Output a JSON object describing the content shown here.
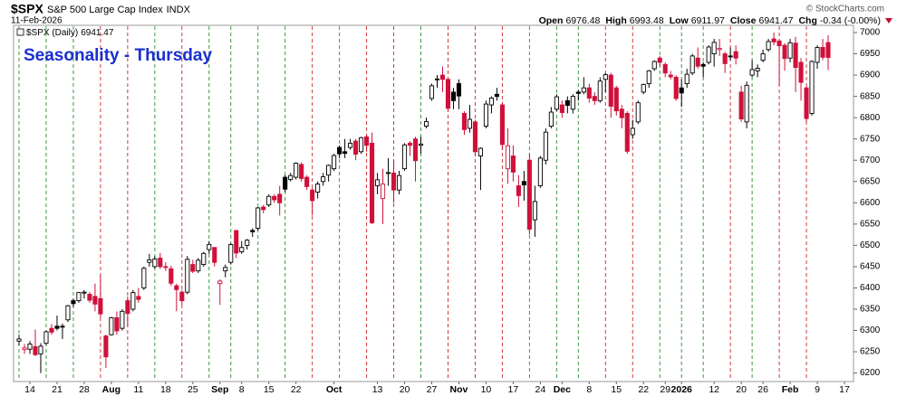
{
  "header": {
    "symbol": "$SPX",
    "name": "S&P 500 Large Cap Index",
    "exchange": "INDX",
    "date": "11-Feb-2026",
    "labels": {
      "open": "Open",
      "high": "High",
      "low": "Low",
      "close": "Close",
      "change": "Chg"
    },
    "change": "-0.34 (-0.00%)",
    "source": "© StockCharts.com"
  },
  "chart_data": {
    "type": "candlestick",
    "title": "Seasonality - Thursday",
    "legend_label": "$SPX (Daily)",
    "categories": [
      null,
      null,
      "14",
      null,
      null,
      null,
      null,
      "21",
      null,
      null,
      null,
      null,
      "28",
      null,
      null,
      null,
      null,
      "Aug",
      null,
      null,
      null,
      null,
      "11",
      null,
      null,
      null,
      null,
      "18",
      null,
      null,
      null,
      null,
      "25",
      null,
      null,
      null,
      null,
      "Sep",
      null,
      null,
      null,
      "8",
      null,
      null,
      null,
      null,
      "15",
      null,
      null,
      null,
      null,
      "22",
      null,
      null,
      null,
      null,
      null,
      null,
      "Oct",
      null,
      null,
      null,
      null,
      null,
      null,
      null,
      "13",
      null,
      null,
      null,
      null,
      "20",
      null,
      null,
      null,
      null,
      "27",
      null,
      null,
      null,
      null,
      "Nov",
      null,
      null,
      null,
      null,
      "10",
      null,
      null,
      null,
      null,
      "17",
      null,
      null,
      null,
      null,
      "24",
      null,
      null,
      null,
      "Dec",
      null,
      null,
      null,
      null,
      "8",
      null,
      null,
      null,
      null,
      "15",
      null,
      null,
      null,
      null,
      "22",
      null,
      null,
      null,
      "29",
      null,
      null,
      "2026",
      null,
      null,
      null,
      null,
      null,
      "12",
      null,
      null,
      null,
      null,
      "20",
      null,
      null,
      null,
      "26",
      null,
      null,
      null,
      null,
      "Feb",
      null,
      null,
      null,
      null,
      "9",
      null,
      null,
      null,
      null,
      "17"
    ],
    "open": [
      6275,
      6255,
      6256,
      6262,
      6245,
      6270,
      6305,
      6310,
      6310,
      6325,
      6370,
      6370,
      6390,
      6385,
      6380,
      6375,
      6287,
      6290,
      6330,
      6305,
      6370,
      6350,
      6380,
      6400,
      6460,
      6450,
      6470,
      6450,
      6445,
      6405,
      6390,
      6390,
      6455,
      6440,
      6455,
      6490,
      6495,
      6410,
      6440,
      6460,
      6535,
      6485,
      6500,
      6535,
      6540,
      6590,
      6595,
      6615,
      6620,
      6660,
      6655,
      6660,
      6690,
      6660,
      6630,
      6625,
      6650,
      6665,
      6680,
      6730,
      6720,
      6730,
      6745,
      6720,
      6755,
      6740,
      6640,
      6610,
      6670,
      6670,
      6630,
      6680,
      6740,
      6750,
      6735,
      6780,
      6845,
      6890,
      6900,
      6890,
      6860,
      6880,
      6810,
      6775,
      6790,
      6710,
      6780,
      6830,
      6855,
      6830,
      6680,
      6710,
      6640,
      6650,
      6700,
      6560,
      6640,
      6700,
      6780,
      6820,
      6830,
      6840,
      6820,
      6860,
      6860,
      6870,
      6850,
      6840,
      6890,
      6900,
      6870,
      6820,
      6810,
      6760,
      6790,
      6860,
      6880,
      6915,
      6940,
      6925,
      6900,
      6895,
      6870,
      6880,
      6905,
      6940,
      6925,
      6930,
      6950,
      6960,
      6950,
      6945,
      6955,
      6860,
      6790,
      6900,
      6910,
      6935,
      6960,
      6985,
      6980,
      6970,
      6940,
      6975,
      6930,
      6870,
      6810,
      6930,
      6965,
      6976.48,
      null,
      null,
      null
    ],
    "high": [
      6290,
      6268,
      6275,
      6302,
      6270,
      6300,
      6315,
      6335,
      6316,
      6360,
      6375,
      6390,
      6395,
      6390,
      6410,
      6430,
      6290,
      6332,
      6345,
      6350,
      6380,
      6395,
      6400,
      6450,
      6480,
      6475,
      6482,
      6460,
      6452,
      6410,
      6395,
      6475,
      6466,
      6470,
      6485,
      6510,
      6495,
      6420,
      6455,
      6505,
      6535,
      6510,
      6515,
      6540,
      6590,
      6595,
      6620,
      6620,
      6640,
      6665,
      6670,
      6695,
      6695,
      6665,
      6635,
      6650,
      6670,
      6690,
      6715,
      6735,
      6750,
      6750,
      6750,
      6755,
      6760,
      6765,
      6670,
      6680,
      6705,
      6700,
      6675,
      6740,
      6745,
      6755,
      6755,
      6800,
      6880,
      6900,
      6920,
      6890,
      6870,
      6890,
      6815,
      6830,
      6795,
      6730,
      6840,
      6850,
      6870,
      6835,
      6775,
      6735,
      6665,
      6675,
      6715,
      6640,
      6710,
      6775,
      6825,
      6855,
      6840,
      6850,
      6855,
      6865,
      6895,
      6880,
      6860,
      6895,
      6905,
      6905,
      6875,
      6830,
      6815,
      6795,
      6840,
      6880,
      6912,
      6935,
      6945,
      6930,
      6910,
      6900,
      6890,
      6915,
      6950,
      6965,
      6930,
      6970,
      6985,
      6985,
      6955,
      6965,
      6970,
      6875,
      6885,
      6935,
      6925,
      6960,
      6985,
      7000,
      6985,
      6975,
      6985,
      6990,
      6940,
      6875,
      6935,
      6970,
      6985,
      6993.48,
      null,
      null,
      null
    ],
    "low": [
      6265,
      6245,
      6245,
      6240,
      6200,
      6265,
      6290,
      6300,
      6280,
      6320,
      6355,
      6365,
      6375,
      6365,
      6345,
      6330,
      6212,
      6288,
      6290,
      6300,
      6310,
      6345,
      6365,
      6395,
      6450,
      6445,
      6445,
      6440,
      6405,
      6345,
      6360,
      6385,
      6435,
      6435,
      6450,
      6480,
      6450,
      6360,
      6425,
      6455,
      6470,
      6480,
      6490,
      6520,
      6535,
      6575,
      6590,
      6600,
      6570,
      6625,
      6650,
      6655,
      6650,
      6630,
      6570,
      6610,
      6640,
      6650,
      6675,
      6705,
      6705,
      6725,
      6700,
      6715,
      6720,
      6550,
      6620,
      6550,
      6640,
      6600,
      6620,
      6675,
      6710,
      6650,
      6715,
      6775,
      6840,
      6870,
      6860,
      6815,
      6820,
      6820,
      6760,
      6765,
      6710,
      6630,
      6775,
      6810,
      6840,
      6725,
      6645,
      6650,
      6590,
      6605,
      6525,
      6520,
      6635,
      6690,
      6775,
      6815,
      6800,
      6810,
      6810,
      6840,
      6855,
      6835,
      6830,
      6835,
      6860,
      6800,
      6805,
      6775,
      6715,
      6750,
      6785,
      6855,
      6870,
      6910,
      6920,
      6895,
      6890,
      6840,
      6825,
      6870,
      6900,
      6915,
      6895,
      6925,
      6920,
      6945,
      6905,
      6935,
      6925,
      6790,
      6775,
      6895,
      6895,
      6930,
      6955,
      6970,
      6875,
      6910,
      6930,
      6860,
      6840,
      6790,
      6805,
      6915,
      6935,
      6911.97,
      null,
      null,
      null
    ],
    "close": [
      6280,
      6259,
      6268,
      6243,
      6263,
      6297,
      6296,
      6305,
      6309,
      6358,
      6363,
      6389,
      6390,
      6371,
      6362,
      6339,
      6238,
      6330,
      6299,
      6345,
      6340,
      6389,
      6373,
      6446,
      6466,
      6468,
      6450,
      6449,
      6411,
      6396,
      6370,
      6467,
      6439,
      6465,
      6481,
      6502,
      6460,
      6416,
      6448,
      6502,
      6482,
      6495,
      6512,
      6532,
      6588,
      6584,
      6615,
      6607,
      6600,
      6632,
      6664,
      6693,
      6657,
      6638,
      6605,
      6644,
      6661,
      6688,
      6711,
      6715,
      6716,
      6740,
      6714,
      6753,
      6735,
      6553,
      6654,
      6644,
      6671,
      6630,
      6664,
      6736,
      6735,
      6699,
      6738,
      6791,
      6875,
      6891,
      6890,
      6822,
      6840,
      6851,
      6772,
      6796,
      6720,
      6728,
      6832,
      6846,
      6850,
      6737,
      6734,
      6672,
      6617,
      6642,
      6538,
      6603,
      6705,
      6766,
      6813,
      6849,
      6812,
      6829,
      6850,
      6857,
      6870,
      6846,
      6840,
      6886,
      6901,
      6827,
      6816,
      6800,
      6721,
      6775,
      6835,
      6878,
      6910,
      6932,
      6930,
      6905,
      6896,
      6845,
      6858,
      6902,
      6945,
      6921,
      6921,
      6966,
      6977,
      6963,
      6927,
      6944,
      6940,
      6797,
      6876,
      6913,
      6916,
      6950,
      6979,
      6978,
      6969,
      6939,
      6976,
      6918,
      6883,
      6798,
      6932,
      6965,
      6942,
      6941.47,
      null,
      null,
      null
    ],
    "marker_colors": [
      "#3c9a3c",
      null,
      null,
      null,
      null,
      "#3c9a3c",
      null,
      null,
      null,
      null,
      "#3c9a3c",
      null,
      null,
      null,
      null,
      "#d03a3a",
      null,
      null,
      null,
      null,
      "#d03a3a",
      null,
      null,
      null,
      null,
      "#3c9a3c",
      null,
      null,
      null,
      null,
      "#d03a3a",
      null,
      null,
      null,
      null,
      "#3c9a3c",
      null,
      null,
      null,
      "#3c9a3c",
      null,
      null,
      null,
      null,
      "#3c9a3c",
      null,
      null,
      null,
      null,
      "#3c9a3c",
      null,
      null,
      null,
      null,
      "#d03a3a",
      null,
      null,
      null,
      null,
      "#3c9a3c",
      null,
      null,
      null,
      null,
      "#d03a3a",
      null,
      null,
      null,
      null,
      "#d03a3a",
      null,
      null,
      null,
      null,
      "#3c9a3c",
      null,
      null,
      null,
      null,
      "#d03a3a",
      null,
      null,
      null,
      null,
      "#d03a3a",
      null,
      null,
      null,
      null,
      "#d03a3a",
      null,
      null,
      null,
      null,
      "#3c9a3c",
      null,
      null,
      null,
      null,
      "#3c9a3c",
      null,
      null,
      null,
      "#3c9a3c",
      null,
      null,
      null,
      null,
      "#d03a3a",
      null,
      null,
      null,
      null,
      "#d03a3a",
      null,
      null,
      null,
      null,
      "#3c9a3c",
      null,
      null,
      null,
      "#3c9a3c",
      null,
      null,
      null,
      "#3c9a3c",
      null,
      null,
      null,
      null,
      "#d03a3a",
      null,
      null,
      null,
      "#3c9a3c",
      null,
      null,
      null,
      null,
      "#d03a3a",
      null,
      null,
      null,
      null,
      "#d03a3a",
      null,
      null,
      null,
      null,
      null,
      null,
      null
    ],
    "colors": {
      "up": "#000000",
      "down": "#d0103a",
      "title": "#1a2fd0"
    },
    "ylim": [
      6180,
      7017
    ],
    "yticks": [
      6200,
      6250,
      6300,
      6350,
      6400,
      6450,
      6500,
      6550,
      6600,
      6650,
      6700,
      6750,
      6800,
      6850,
      6900,
      6950,
      7000
    ],
    "grid": false
  }
}
